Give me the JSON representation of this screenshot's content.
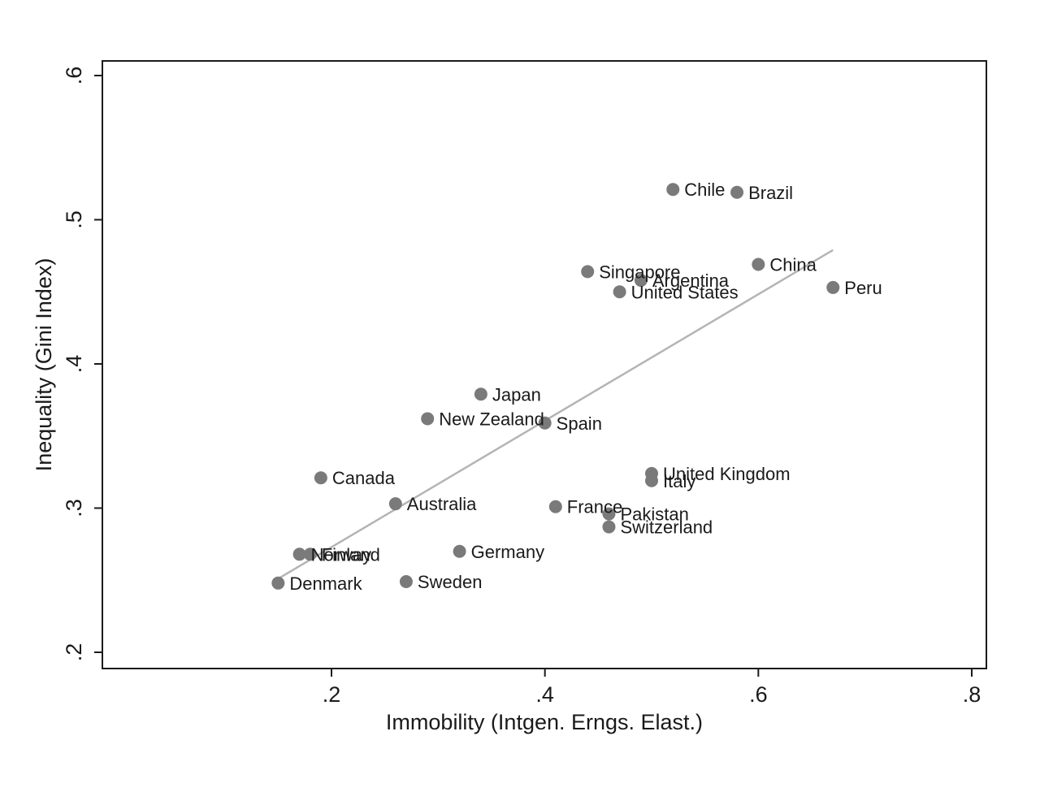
{
  "chart_data": {
    "type": "scatter",
    "title": "",
    "xlabel": "Immobility (Intgen. Erngs. Elast.)",
    "ylabel": "Inequality (Gini Index)",
    "xlim": [
      0.0,
      0.815
    ],
    "ylim": [
      0.19,
      0.6
    ],
    "xticks": [
      {
        "value": 0.2,
        "label": ".2"
      },
      {
        "value": 0.4,
        "label": ".4"
      },
      {
        "value": 0.6,
        "label": ".6"
      },
      {
        "value": 0.8,
        "label": ".8"
      }
    ],
    "yticks": [
      {
        "value": 0.2,
        "label": ".2"
      },
      {
        "value": 0.3,
        "label": ".3"
      },
      {
        "value": 0.4,
        "label": ".4"
      },
      {
        "value": 0.5,
        "label": ".5"
      },
      {
        "value": 0.6,
        "label": ".6"
      }
    ],
    "grid": false,
    "legend": "none",
    "point_color": "#7a7a7a",
    "fit_line_color": "#b4b4b4",
    "fit_line": {
      "x": [
        0.15,
        0.67
      ],
      "y": [
        0.251,
        0.479
      ]
    },
    "points": [
      {
        "label": "Chile",
        "x": 0.52,
        "y": 0.521
      },
      {
        "label": "Brazil",
        "x": 0.58,
        "y": 0.519
      },
      {
        "label": "China",
        "x": 0.6,
        "y": 0.469
      },
      {
        "label": "Singapore",
        "x": 0.44,
        "y": 0.464
      },
      {
        "label": "Argentina",
        "x": 0.49,
        "y": 0.458
      },
      {
        "label": "United States",
        "x": 0.47,
        "y": 0.45
      },
      {
        "label": "Peru",
        "x": 0.67,
        "y": 0.453
      },
      {
        "label": "Japan",
        "x": 0.34,
        "y": 0.379
      },
      {
        "label": "New Zealand",
        "x": 0.29,
        "y": 0.362
      },
      {
        "label": "Spain",
        "x": 0.4,
        "y": 0.359
      },
      {
        "label": "United Kingdom",
        "x": 0.5,
        "y": 0.324
      },
      {
        "label": "Italy",
        "x": 0.5,
        "y": 0.319
      },
      {
        "label": "Canada",
        "x": 0.19,
        "y": 0.321
      },
      {
        "label": "Australia",
        "x": 0.26,
        "y": 0.303
      },
      {
        "label": "France",
        "x": 0.41,
        "y": 0.301
      },
      {
        "label": "Pakistan",
        "x": 0.46,
        "y": 0.296
      },
      {
        "label": "Switzerland",
        "x": 0.46,
        "y": 0.287
      },
      {
        "label": "Germany",
        "x": 0.32,
        "y": 0.27
      },
      {
        "label": "Norway",
        "x": 0.17,
        "y": 0.268
      },
      {
        "label": "Finland",
        "x": 0.18,
        "y": 0.268
      },
      {
        "label": "Denmark",
        "x": 0.15,
        "y": 0.248
      },
      {
        "label": "Sweden",
        "x": 0.27,
        "y": 0.249
      }
    ]
  }
}
